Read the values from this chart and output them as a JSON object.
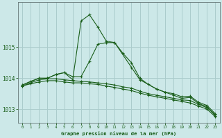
{
  "title": "Graphe pression niveau de la mer (hPa)",
  "bg_color": "#cce8e8",
  "grid_color": "#aacccc",
  "line_color": "#1a5e1a",
  "series": [
    {
      "x": [
        0,
        1,
        2,
        3,
        4,
        5,
        6,
        7,
        8,
        9,
        10,
        11,
        12,
        13,
        14,
        15,
        16,
        17,
        18,
        19,
        20,
        21,
        22,
        23
      ],
      "y": [
        1013.75,
        1013.82,
        1013.88,
        1013.92,
        1013.92,
        1013.88,
        1013.85,
        1013.85,
        1013.82,
        1013.8,
        1013.75,
        1013.7,
        1013.65,
        1013.6,
        1013.52,
        1013.45,
        1013.4,
        1013.35,
        1013.3,
        1013.25,
        1013.2,
        1013.1,
        1013.0,
        1012.75
      ]
    },
    {
      "x": [
        0,
        1,
        2,
        3,
        4,
        5,
        6,
        7,
        8,
        9,
        10,
        11,
        12,
        13,
        14,
        15,
        16,
        17,
        18,
        19,
        20,
        21,
        22,
        23
      ],
      "y": [
        1013.75,
        1013.85,
        1013.95,
        1013.98,
        1013.98,
        1013.95,
        1013.92,
        1013.9,
        1013.88,
        1013.85,
        1013.82,
        1013.78,
        1013.72,
        1013.68,
        1013.58,
        1013.5,
        1013.45,
        1013.4,
        1013.35,
        1013.3,
        1013.28,
        1013.15,
        1013.05,
        1012.82
      ]
    },
    {
      "x": [
        0,
        1,
        2,
        3,
        4,
        5,
        6,
        7,
        8,
        9,
        10,
        11,
        12,
        13,
        14,
        15,
        16,
        17,
        18,
        19,
        20,
        21,
        22,
        23
      ],
      "y": [
        1013.78,
        1013.9,
        1014.0,
        1014.0,
        1014.12,
        1014.18,
        1014.05,
        1014.05,
        1014.55,
        1015.1,
        1015.15,
        1015.15,
        1014.8,
        1014.5,
        1014.0,
        1013.8,
        1013.65,
        1013.55,
        1013.5,
        1013.4,
        1013.42,
        1013.22,
        1013.12,
        1012.85
      ]
    },
    {
      "x": [
        0,
        2,
        3,
        4,
        5,
        6,
        7,
        8,
        9,
        10,
        11,
        13,
        14,
        16,
        17,
        18,
        19,
        20,
        21,
        22,
        23
      ],
      "y": [
        1013.78,
        1014.0,
        1014.0,
        1014.12,
        1014.18,
        1013.95,
        1015.85,
        1016.05,
        1015.65,
        1015.2,
        1015.15,
        1014.35,
        1013.95,
        1013.65,
        1013.55,
        1013.45,
        1013.35,
        1013.38,
        1013.18,
        1013.08,
        1012.78
      ]
    }
  ],
  "yticks": [
    1013,
    1014,
    1015
  ],
  "xticks": [
    0,
    1,
    2,
    3,
    4,
    5,
    6,
    7,
    8,
    9,
    10,
    11,
    12,
    13,
    14,
    15,
    16,
    17,
    18,
    19,
    20,
    21,
    22,
    23
  ],
  "ylim": [
    1012.55,
    1016.45
  ],
  "xlim": [
    -0.5,
    23.5
  ]
}
